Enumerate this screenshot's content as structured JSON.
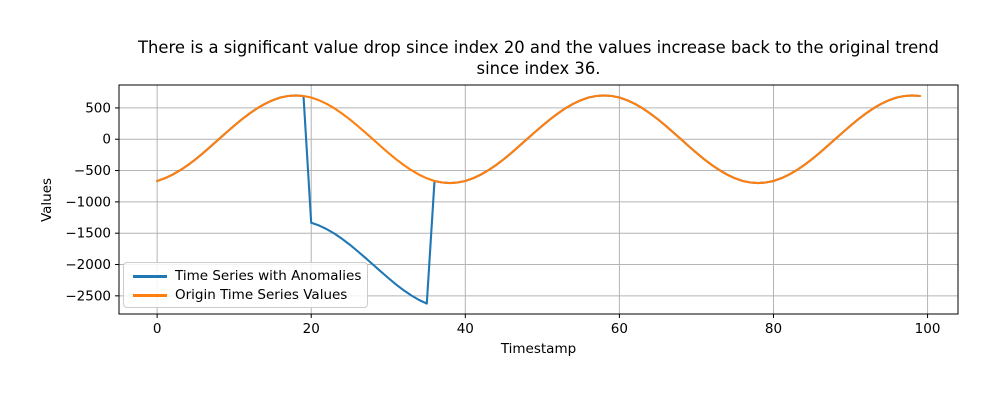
{
  "chart_data": {
    "type": "line",
    "title": "There is a significant value drop since index 20 and the values increase back to the original trend since index 36.",
    "title_lines": [
      "There is a significant value drop since index 20 and the values increase back to the original trend",
      "since index 36."
    ],
    "xlabel": "Timestamp",
    "ylabel": "Values",
    "x": [
      0,
      1,
      2,
      3,
      4,
      5,
      6,
      7,
      8,
      9,
      10,
      11,
      12,
      13,
      14,
      15,
      16,
      17,
      18,
      19,
      20,
      21,
      22,
      23,
      24,
      25,
      26,
      27,
      28,
      29,
      30,
      31,
      32,
      33,
      34,
      35,
      36,
      37,
      38,
      39,
      40,
      41,
      42,
      43,
      44,
      45,
      46,
      47,
      48,
      49,
      50,
      51,
      52,
      53,
      54,
      55,
      56,
      57,
      58,
      59,
      60,
      61,
      62,
      63,
      64,
      65,
      66,
      67,
      68,
      69,
      70,
      71,
      72,
      73,
      74,
      75,
      76,
      77,
      78,
      79,
      80,
      81,
      82,
      83,
      84,
      85,
      86,
      87,
      88,
      89,
      90,
      91,
      92,
      93,
      94,
      95,
      96,
      97,
      98,
      99
    ],
    "series": [
      {
        "name": "Time Series with Anomalies",
        "color": "#1f77b4",
        "values": [
          -666,
          -624,
          -566,
          -495,
          -411,
          -318,
          -216,
          -109,
          0,
          109,
          216,
          318,
          411,
          495,
          566,
          624,
          666,
          691,
          700,
          691,
          -1334,
          -1376,
          -1434,
          -1505,
          -1589,
          -1682,
          -1784,
          -1891,
          -2000,
          -2109,
          -2216,
          -2318,
          -2411,
          -2495,
          -2566,
          -2624,
          -666,
          -691,
          -700,
          -691,
          -666,
          -624,
          -566,
          -495,
          -411,
          -318,
          -216,
          -109,
          0,
          109,
          216,
          318,
          411,
          495,
          566,
          624,
          666,
          691,
          700,
          691,
          666,
          624,
          566,
          495,
          411,
          318,
          216,
          109,
          0,
          -109,
          -216,
          -318,
          -411,
          -495,
          -566,
          -624,
          -666,
          -691,
          -700,
          -691,
          -666,
          -624,
          -566,
          -495,
          -411,
          -318,
          -216,
          -109,
          0,
          109,
          216,
          318,
          411,
          495,
          566,
          624,
          666,
          691,
          700,
          691
        ]
      },
      {
        "name": "Origin Time Series Values",
        "color": "#ff7f0e",
        "values": [
          -666,
          -624,
          -566,
          -495,
          -411,
          -318,
          -216,
          -109,
          0,
          109,
          216,
          318,
          411,
          495,
          566,
          624,
          666,
          691,
          700,
          691,
          666,
          624,
          566,
          495,
          411,
          318,
          216,
          109,
          0,
          -109,
          -216,
          -318,
          -411,
          -495,
          -566,
          -624,
          -666,
          -691,
          -700,
          -691,
          -666,
          -624,
          -566,
          -495,
          -411,
          -318,
          -216,
          -109,
          0,
          109,
          216,
          318,
          411,
          495,
          566,
          624,
          666,
          691,
          700,
          691,
          666,
          624,
          566,
          495,
          411,
          318,
          216,
          109,
          0,
          -109,
          -216,
          -318,
          -411,
          -495,
          -566,
          -624,
          -666,
          -691,
          -700,
          -691,
          -666,
          -624,
          -566,
          -495,
          -411,
          -318,
          -216,
          -109,
          0,
          109,
          216,
          318,
          411,
          495,
          566,
          624,
          666,
          691,
          700,
          691
        ]
      }
    ],
    "xticks": {
      "values": [
        0,
        20,
        40,
        60,
        80,
        100
      ],
      "labels": [
        "0",
        "20",
        "40",
        "60",
        "80",
        "100"
      ]
    },
    "yticks": {
      "values": [
        500,
        0,
        -500,
        -1000,
        -1500,
        -2000,
        -2500
      ],
      "labels": [
        "500",
        "0",
        "−500",
        "−1000",
        "−1500",
        "−2000",
        "−2500"
      ]
    },
    "xlim": [
      -4.95,
      103.95
    ],
    "ylim": [
      -2790,
      866
    ],
    "grid": true,
    "legend": {
      "position": "lower left",
      "entries": [
        "Time Series with Anomalies",
        "Origin Time Series Values"
      ]
    },
    "colors": {
      "grid": "#b4b4b4",
      "spine": "#000000",
      "background": "#ffffff",
      "series_anomaly": "#1f77b4",
      "series_origin": "#ff7f0e"
    }
  }
}
